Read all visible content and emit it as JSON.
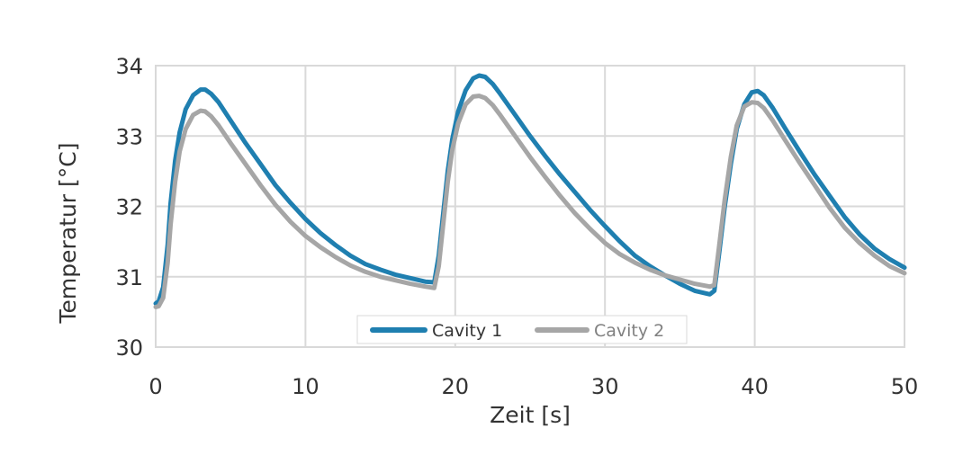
{
  "chart_data": {
    "type": "line",
    "title": "",
    "xlabel": "Zeit [s]",
    "ylabel": "Temperatur [°C]",
    "xlim": [
      0,
      50
    ],
    "ylim": [
      30,
      34
    ],
    "x_ticks": [
      "0",
      "10",
      "20",
      "30",
      "40",
      "50"
    ],
    "y_ticks": [
      "30",
      "31",
      "32",
      "33",
      "34"
    ],
    "grid": true,
    "legend_position": "bottom-center",
    "series": [
      {
        "name": "Cavity 1",
        "color": "#1f7fb0",
        "x": [
          0,
          0.2,
          0.5,
          0.8,
          1,
          1.3,
          1.6,
          2,
          2.5,
          3,
          3.3,
          3.7,
          4.2,
          5,
          6,
          7,
          8,
          9,
          10,
          11,
          12,
          13,
          14,
          15,
          16,
          17,
          18,
          18.6,
          18.9,
          19.2,
          19.5,
          19.8,
          20.2,
          20.7,
          21.2,
          21.6,
          22,
          22.5,
          23,
          24,
          25,
          26,
          27,
          28,
          29,
          30,
          31,
          32,
          33,
          34,
          35,
          36,
          37,
          37.3,
          37.6,
          38,
          38.4,
          38.8,
          39.3,
          39.8,
          40.2,
          40.6,
          41.2,
          42,
          43,
          44,
          45,
          46,
          47,
          48,
          49,
          50
        ],
        "y": [
          30.62,
          30.65,
          30.85,
          31.45,
          32.05,
          32.65,
          33.05,
          33.38,
          33.58,
          33.66,
          33.66,
          33.6,
          33.48,
          33.22,
          32.9,
          32.6,
          32.3,
          32.05,
          31.82,
          31.62,
          31.45,
          31.3,
          31.18,
          31.1,
          31.03,
          30.98,
          30.93,
          30.92,
          31.3,
          31.9,
          32.5,
          32.95,
          33.35,
          33.65,
          33.82,
          33.86,
          33.84,
          33.74,
          33.6,
          33.3,
          33.0,
          32.72,
          32.45,
          32.2,
          31.95,
          31.72,
          31.5,
          31.3,
          31.15,
          31.02,
          30.9,
          30.8,
          30.75,
          30.8,
          31.3,
          32.0,
          32.6,
          33.1,
          33.45,
          33.62,
          33.64,
          33.58,
          33.4,
          33.12,
          32.78,
          32.45,
          32.15,
          31.85,
          31.6,
          31.4,
          31.25,
          31.13
        ]
      },
      {
        "name": "Cavity 2",
        "color": "#a6a6a6",
        "x": [
          0,
          0.2,
          0.5,
          0.8,
          1,
          1.3,
          1.6,
          2,
          2.5,
          3,
          3.3,
          3.7,
          4.2,
          5,
          6,
          7,
          8,
          9,
          10,
          11,
          12,
          13,
          14,
          15,
          16,
          17,
          18,
          18.6,
          18.9,
          19.2,
          19.5,
          19.8,
          20.2,
          20.7,
          21.2,
          21.6,
          22,
          22.5,
          23,
          24,
          25,
          26,
          27,
          28,
          29,
          30,
          31,
          32,
          33,
          34,
          35,
          36,
          37,
          37.3,
          37.6,
          38,
          38.4,
          38.8,
          39.3,
          39.8,
          40.2,
          40.6,
          41.2,
          42,
          43,
          44,
          45,
          46,
          47,
          48,
          49,
          50
        ],
        "y": [
          30.57,
          30.58,
          30.7,
          31.2,
          31.75,
          32.35,
          32.78,
          33.1,
          33.3,
          33.36,
          33.35,
          33.28,
          33.15,
          32.9,
          32.6,
          32.3,
          32.02,
          31.78,
          31.58,
          31.42,
          31.28,
          31.16,
          31.07,
          31.0,
          30.95,
          30.9,
          30.86,
          30.84,
          31.15,
          31.75,
          32.35,
          32.8,
          33.18,
          33.45,
          33.56,
          33.57,
          33.54,
          33.44,
          33.3,
          33.0,
          32.7,
          32.42,
          32.15,
          31.9,
          31.68,
          31.48,
          31.32,
          31.2,
          31.1,
          31.02,
          30.96,
          30.9,
          30.86,
          30.88,
          31.4,
          32.1,
          32.7,
          33.15,
          33.42,
          33.48,
          33.47,
          33.4,
          33.22,
          32.95,
          32.62,
          32.3,
          31.98,
          31.7,
          31.48,
          31.3,
          31.15,
          31.05
        ]
      }
    ]
  }
}
